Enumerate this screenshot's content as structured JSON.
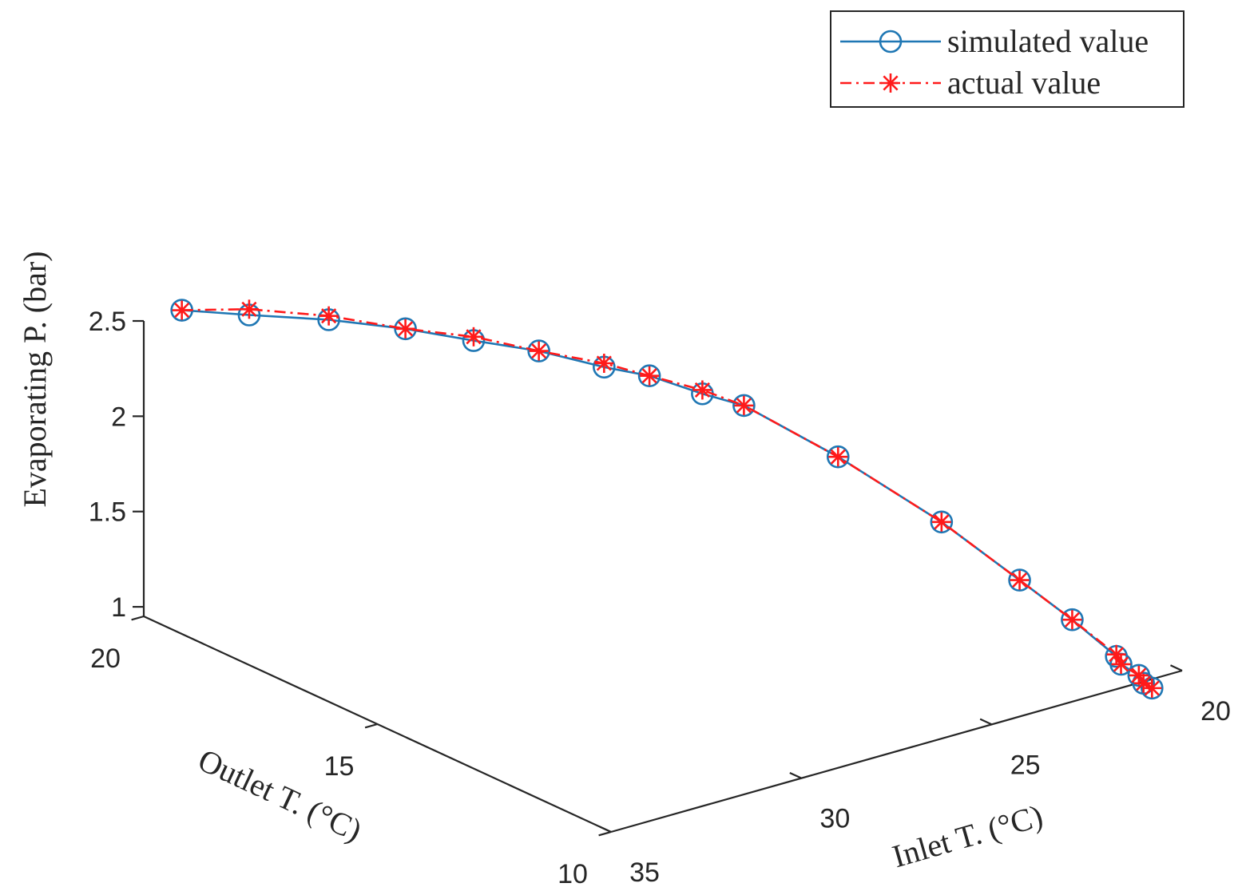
{
  "chart_data": {
    "type": "line",
    "projection": "3d",
    "title": "",
    "axes": {
      "x": {
        "label": "Inlet T.    (°C)",
        "range": [
          20,
          35
        ],
        "ticks": [
          20,
          25,
          30,
          35
        ]
      },
      "y": {
        "label": "Outlet T.  (°C)",
        "range": [
          10,
          20
        ],
        "ticks": [
          10,
          15,
          20
        ]
      },
      "z": {
        "label": "Evaporating P.  (bar)",
        "range": [
          0.95,
          2.5
        ],
        "ticks": [
          1,
          1.5,
          2,
          2.5
        ]
      }
    },
    "legend_position": "top-right",
    "series": [
      {
        "name": "simulated value",
        "color": "#1f77b4",
        "line": "solid",
        "marker": "circle",
        "points": [
          [
            34.0,
            20.0,
            2.5
          ],
          [
            32.6,
            19.7,
            2.43
          ],
          [
            31.0,
            19.3,
            2.36
          ],
          [
            29.6,
            18.8,
            2.29
          ],
          [
            28.3,
            18.4,
            2.2
          ],
          [
            27.2,
            17.9,
            2.14
          ],
          [
            26.1,
            17.4,
            2.05
          ],
          [
            25.4,
            17.0,
            2.01
          ],
          [
            24.5,
            16.6,
            1.91
          ],
          [
            23.9,
            16.2,
            1.86
          ],
          [
            22.9,
            15.0,
            1.67
          ],
          [
            21.9,
            13.6,
            1.43
          ],
          [
            21.2,
            12.5,
            1.21
          ],
          [
            20.8,
            11.7,
            1.07
          ],
          [
            20.5,
            11.0,
            0.94
          ],
          [
            20.5,
            10.9,
            0.91
          ],
          [
            20.4,
            10.6,
            0.88
          ],
          [
            20.4,
            10.5,
            0.85
          ],
          [
            20.3,
            10.4,
            0.83
          ]
        ]
      },
      {
        "name": "actual value",
        "color": "#ff1a1a",
        "line": "dashdot",
        "marker": "asterisk",
        "points": [
          [
            34.0,
            20.0,
            2.5
          ],
          [
            32.6,
            19.7,
            2.46
          ],
          [
            31.0,
            19.3,
            2.38
          ],
          [
            29.6,
            18.8,
            2.29
          ],
          [
            28.3,
            18.4,
            2.22
          ],
          [
            27.2,
            17.9,
            2.14
          ],
          [
            26.1,
            17.4,
            2.07
          ],
          [
            25.4,
            17.0,
            2.01
          ],
          [
            24.5,
            16.6,
            1.93
          ],
          [
            23.9,
            16.2,
            1.86
          ],
          [
            22.9,
            15.0,
            1.67
          ],
          [
            21.9,
            13.6,
            1.43
          ],
          [
            21.2,
            12.5,
            1.21
          ],
          [
            20.8,
            11.7,
            1.07
          ],
          [
            20.5,
            11.0,
            0.95
          ],
          [
            20.5,
            10.9,
            0.91
          ],
          [
            20.4,
            10.6,
            0.88
          ],
          [
            20.4,
            10.5,
            0.85
          ],
          [
            20.3,
            10.4,
            0.83
          ]
        ]
      }
    ]
  }
}
